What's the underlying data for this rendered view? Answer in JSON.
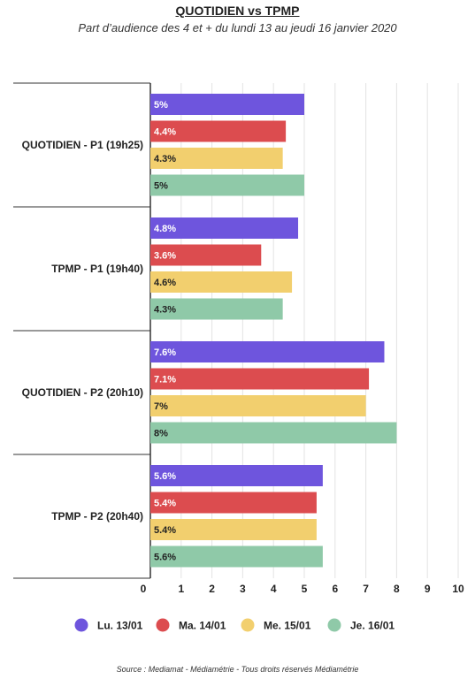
{
  "title": "QUOTIDIEN vs TPMP",
  "subtitle": "Part d’audience des 4 et + du lundi 13 au jeudi 16 janvier 2020",
  "source": "Source : Mediamat - Médiamétrie - Tous droits réservés Médiamétrie",
  "chart_data": {
    "type": "bar",
    "orientation": "horizontal",
    "categories": [
      "QUOTIDIEN - P1 (19h25)",
      "TPMP - P1 (19h40)",
      "QUOTIDIEN - P2 (20h10)",
      "TPMP - P2 (20h40)"
    ],
    "series": [
      {
        "name": "Lu. 13/01",
        "color": "#6e55dd",
        "label_color": "#ffffff",
        "values": [
          5,
          4.8,
          7.6,
          5.6
        ],
        "labels": [
          "5%",
          "4.8%",
          "7.6%",
          "5.6%"
        ]
      },
      {
        "name": "Ma. 14/01",
        "color": "#dc4c4f",
        "label_color": "#ffffff",
        "values": [
          4.4,
          3.6,
          7.1,
          5.4
        ],
        "labels": [
          "4.4%",
          "3.6%",
          "7.1%",
          "5.4%"
        ]
      },
      {
        "name": "Me. 15/01",
        "color": "#f2cf6e",
        "label_color": "#222222",
        "values": [
          4.3,
          4.6,
          7,
          5.4
        ],
        "labels": [
          "4.3%",
          "4.6%",
          "7%",
          "5.4%"
        ]
      },
      {
        "name": "Je. 16/01",
        "color": "#8fc9a8",
        "label_color": "#222222",
        "values": [
          5,
          4.3,
          8,
          5.6
        ],
        "labels": [
          "5%",
          "4.3%",
          "8%",
          "5.6%"
        ]
      }
    ],
    "xlim": [
      0,
      10
    ],
    "xticks": [
      "0",
      "1",
      "2",
      "3",
      "4",
      "5",
      "6",
      "7",
      "8",
      "9",
      "10"
    ],
    "grid": true,
    "legend": "bottom"
  }
}
